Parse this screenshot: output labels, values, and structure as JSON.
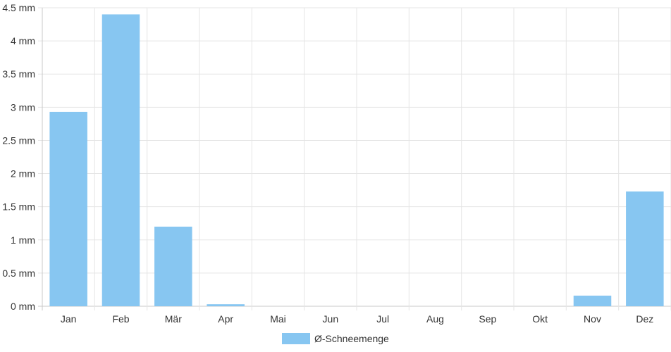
{
  "chart_data": {
    "type": "bar",
    "categories": [
      "Jan",
      "Feb",
      "Mär",
      "Apr",
      "Mai",
      "Jun",
      "Jul",
      "Aug",
      "Sep",
      "Okt",
      "Nov",
      "Dez"
    ],
    "series": [
      {
        "name": "Ø-Schneemenge",
        "values": [
          2.93,
          4.4,
          1.2,
          0.03,
          0,
          0,
          0,
          0,
          0,
          0,
          0.16,
          1.73
        ]
      }
    ],
    "ylim": [
      0,
      4.5
    ],
    "yticks": [
      0,
      0.5,
      1,
      1.5,
      2,
      2.5,
      3,
      3.5,
      4,
      4.5
    ],
    "y_unit": "mm",
    "grid": true,
    "legend_position": "bottom-center"
  },
  "colors": {
    "bar": "#87c6f1",
    "grid": "#e5e5e5",
    "axis": "#c8c8c8",
    "text": "#333333"
  }
}
